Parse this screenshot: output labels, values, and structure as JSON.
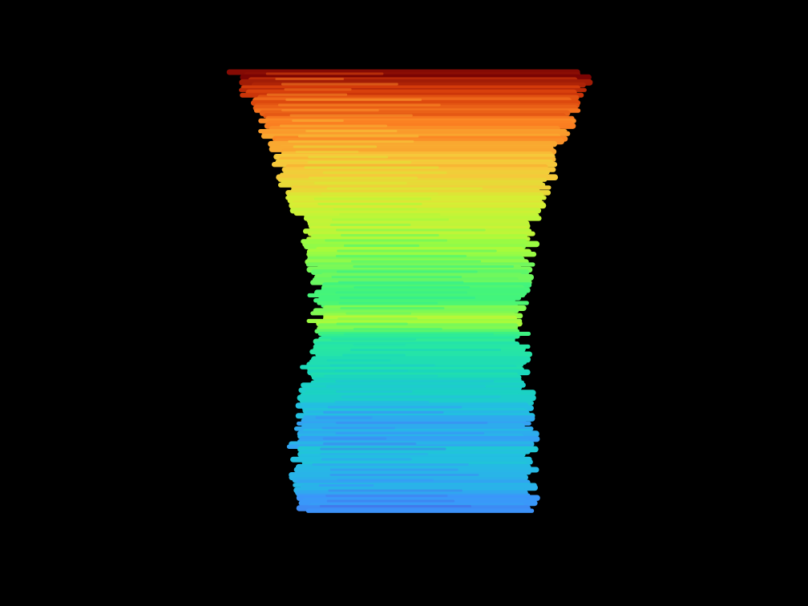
{
  "scene": {
    "background": "#000000",
    "description_colormap": "turbo",
    "colormap_stops": [
      "#7a0403",
      "#e4460a",
      "#fb8022",
      "#f7c73a",
      "#d5ef34",
      "#a4fc3c",
      "#61fc6c",
      "#2ef09a",
      "#1ae4b6",
      "#23c4e2",
      "#3a8cfa",
      "#4662d7"
    ]
  },
  "strokes_source": "generated-procedurally-from-render-script"
}
